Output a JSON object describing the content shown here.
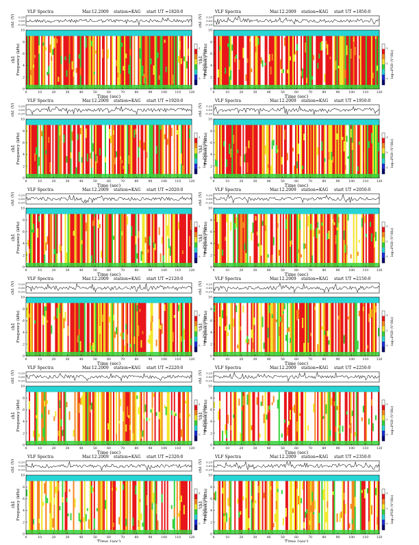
{
  "header_label": "VLF Spectra",
  "date_label": "Mar.12.2009",
  "station_label": "station=KAG",
  "waveform_ylabel": "ch1 (V)",
  "channel_label": "ch1",
  "freq_ylabel": "Frequency (kHz)",
  "time_xlabel": "Time (sec)",
  "colorbar_label": "log₁₀PSD (V²/Hz)",
  "colors": {
    "white": "#ffffff",
    "red": "#e8161b",
    "orange": "#f6891f",
    "yellow": "#f2e92b",
    "green": "#35d33b",
    "cyan": "#26d6d6",
    "blue": "#1d2fd8",
    "navy": "#0a0a70"
  },
  "chart_data": [
    {
      "type": "heatmap",
      "title": "VLF Spectra  Mar.12.2009  station=KAG  start UT =1820:0",
      "start_ut": "1820:0",
      "xlabel": "Time (sec)",
      "ylabel": "Frequency (kHz)",
      "xlim": [
        0,
        120
      ],
      "ylim": [
        0,
        10
      ],
      "x_ticks": [
        "0",
        "10",
        "20",
        "30",
        "40",
        "50",
        "60",
        "70",
        "80",
        "90",
        "100",
        "110",
        "120"
      ],
      "y_ticks": [
        "0",
        "2",
        "4",
        "6",
        "8",
        "10"
      ],
      "waveform_ylabel": "ch1 (V)",
      "waveform_ticks": [
        "0.20",
        "0.00",
        "-0.20"
      ],
      "colorbar_label": "log₁₀PSD (V²/Hz)",
      "colorbar_ticks": [
        "-1",
        "-2",
        "-3"
      ]
    },
    {
      "type": "heatmap",
      "title": "VLF Spectra  Mar.12.2009  station=KAG  start UT =1850:0",
      "start_ut": "1850:0",
      "xlabel": "Time (sec)",
      "ylabel": "Frequency (kHz)",
      "xlim": [
        0,
        120
      ],
      "ylim": [
        0,
        10
      ],
      "x_ticks": [
        "0",
        "10",
        "20",
        "30",
        "40",
        "50",
        "60",
        "70",
        "80",
        "90",
        "100",
        "110",
        "120"
      ],
      "y_ticks": [
        "0",
        "2",
        "4",
        "6",
        "8",
        "10"
      ],
      "waveform_ylabel": "ch1 (V)",
      "waveform_ticks": [
        "0.20",
        "0.00",
        "-0.20"
      ],
      "colorbar_label": "log₁₀PSD (V²/Hz)",
      "colorbar_ticks": [
        "-1",
        "-2",
        "-3"
      ]
    },
    {
      "type": "heatmap",
      "title": "VLF Spectra  Mar.12.2009  station=KAG  start UT =1920:0",
      "start_ut": "1920:0",
      "xlabel": "Time (sec)",
      "ylabel": "Frequency (kHz)",
      "xlim": [
        0,
        120
      ],
      "ylim": [
        0,
        10
      ],
      "x_ticks": [
        "0",
        "10",
        "20",
        "30",
        "40",
        "50",
        "60",
        "70",
        "80",
        "90",
        "100",
        "110",
        "120"
      ],
      "y_ticks": [
        "0",
        "2",
        "4",
        "6",
        "8",
        "10"
      ],
      "waveform_ylabel": "ch1 (V)",
      "waveform_ticks": [
        "0.20",
        "0.00",
        "-0.20"
      ],
      "colorbar_label": "log₁₀PSD (V²/Hz)",
      "colorbar_ticks": [
        "-1",
        "-2",
        "-3"
      ]
    },
    {
      "type": "heatmap",
      "title": "VLF Spectra  Mar.12.2009  station=KAG  start UT =1950:0",
      "start_ut": "1950:0",
      "xlabel": "Time (sec)",
      "ylabel": "Frequency (kHz)",
      "xlim": [
        0,
        120
      ],
      "ylim": [
        0,
        10
      ],
      "x_ticks": [
        "0",
        "10",
        "20",
        "30",
        "40",
        "50",
        "60",
        "70",
        "80",
        "90",
        "100",
        "110",
        "120"
      ],
      "y_ticks": [
        "0",
        "2",
        "4",
        "6",
        "8",
        "10"
      ],
      "waveform_ylabel": "ch1 (V)",
      "waveform_ticks": [
        "0.20",
        "0.00",
        "-0.20"
      ],
      "colorbar_label": "log₁₀PSD (V²/Hz)",
      "colorbar_ticks": [
        "-1",
        "-2",
        "-3"
      ]
    },
    {
      "type": "heatmap",
      "title": "VLF Spectra  Mar.12.2009  station=KAG  start UT =2020:0",
      "start_ut": "2020:0",
      "xlabel": "Time (sec)",
      "ylabel": "Frequency (kHz)",
      "xlim": [
        0,
        120
      ],
      "ylim": [
        0,
        10
      ],
      "x_ticks": [
        "0",
        "10",
        "20",
        "30",
        "40",
        "50",
        "60",
        "70",
        "80",
        "90",
        "100",
        "110",
        "120"
      ],
      "y_ticks": [
        "0",
        "2",
        "4",
        "6",
        "8",
        "10"
      ],
      "waveform_ylabel": "ch1 (V)",
      "waveform_ticks": [
        "0.20",
        "0.00",
        "-0.20"
      ],
      "colorbar_label": "log₁₀PSD (V²/Hz)",
      "colorbar_ticks": [
        "-1",
        "-2",
        "-3"
      ]
    },
    {
      "type": "heatmap",
      "title": "VLF Spectra  Mar.12.2009  station=KAG  start UT =2050:0",
      "start_ut": "2050:0",
      "xlabel": "Time (sec)",
      "ylabel": "Frequency (kHz)",
      "xlim": [
        0,
        120
      ],
      "ylim": [
        0,
        10
      ],
      "x_ticks": [
        "0",
        "10",
        "20",
        "30",
        "40",
        "50",
        "60",
        "70",
        "80",
        "90",
        "100",
        "110",
        "120"
      ],
      "y_ticks": [
        "0",
        "2",
        "4",
        "6",
        "8",
        "10"
      ],
      "waveform_ylabel": "ch1 (V)",
      "waveform_ticks": [
        "0.20",
        "0.00",
        "-0.20"
      ],
      "colorbar_label": "log₁₀PSD (V²/Hz)",
      "colorbar_ticks": [
        "-1",
        "-2",
        "-3"
      ]
    },
    {
      "type": "heatmap",
      "title": "VLF Spectra  Mar.12.2009  station=KAG  start UT =2120:0",
      "start_ut": "2120:0",
      "xlabel": "Time (sec)",
      "ylabel": "Frequency (kHz)",
      "xlim": [
        0,
        120
      ],
      "ylim": [
        0,
        10
      ],
      "x_ticks": [
        "0",
        "10",
        "20",
        "30",
        "40",
        "50",
        "60",
        "70",
        "80",
        "90",
        "100",
        "110",
        "120"
      ],
      "y_ticks": [
        "0",
        "2",
        "4",
        "6",
        "8",
        "10"
      ],
      "waveform_ylabel": "ch1 (V)",
      "waveform_ticks": [
        "0.20",
        "0.00",
        "-0.20"
      ],
      "colorbar_label": "log₁₀PSD (V²/Hz)",
      "colorbar_ticks": [
        "-1",
        "-2",
        "-3"
      ]
    },
    {
      "type": "heatmap",
      "title": "VLF Spectra  Mar.12.2009  station=KAG  start UT =2150:0",
      "start_ut": "2150:0",
      "xlabel": "Time (sec)",
      "ylabel": "Frequency (kHz)",
      "xlim": [
        0,
        120
      ],
      "ylim": [
        0,
        10
      ],
      "x_ticks": [
        "0",
        "10",
        "20",
        "30",
        "40",
        "50",
        "60",
        "70",
        "80",
        "90",
        "100",
        "110",
        "120"
      ],
      "y_ticks": [
        "0",
        "2",
        "4",
        "6",
        "8",
        "10"
      ],
      "waveform_ylabel": "ch1 (V)",
      "waveform_ticks": [
        "0.20",
        "0.00",
        "-0.20"
      ],
      "colorbar_label": "log₁₀PSD (V²/Hz)",
      "colorbar_ticks": [
        "-1",
        "-2",
        "-3"
      ]
    },
    {
      "type": "heatmap",
      "title": "VLF Spectra  Mar.12.2009  station=KAG  start UT =2220:0",
      "start_ut": "2220:0",
      "xlabel": "Time (sec)",
      "ylabel": "Frequency (kHz)",
      "xlim": [
        0,
        120
      ],
      "ylim": [
        0,
        10
      ],
      "x_ticks": [
        "0",
        "10",
        "20",
        "30",
        "40",
        "50",
        "60",
        "70",
        "80",
        "90",
        "100",
        "110",
        "120"
      ],
      "y_ticks": [
        "0",
        "2",
        "4",
        "6",
        "8",
        "10"
      ],
      "waveform_ylabel": "ch1 (V)",
      "waveform_ticks": [
        "0.20",
        "0.00",
        "-0.20"
      ],
      "colorbar_label": "log₁₀PSD (V²/Hz)",
      "colorbar_ticks": [
        "-1",
        "-2",
        "-3"
      ]
    },
    {
      "type": "heatmap",
      "title": "VLF Spectra  Mar.12.2009  station=KAG  start UT =2250:0",
      "start_ut": "2250:0",
      "xlabel": "Time (sec)",
      "ylabel": "Frequency (kHz)",
      "xlim": [
        0,
        120
      ],
      "ylim": [
        0,
        10
      ],
      "x_ticks": [
        "0",
        "10",
        "20",
        "30",
        "40",
        "50",
        "60",
        "70",
        "80",
        "90",
        "100",
        "110",
        "120"
      ],
      "y_ticks": [
        "0",
        "2",
        "4",
        "6",
        "8",
        "10"
      ],
      "waveform_ylabel": "ch1 (V)",
      "waveform_ticks": [
        "0.20",
        "0.00",
        "-0.20"
      ],
      "colorbar_label": "log₁₀PSD (V²/Hz)",
      "colorbar_ticks": [
        "-1",
        "-2",
        "-3"
      ]
    },
    {
      "type": "heatmap",
      "title": "VLF Spectra  Mar.12.2009  station=KAG  start UT =2320:0",
      "start_ut": "2320:0",
      "xlabel": "Time (sec)",
      "ylabel": "Frequency (kHz)",
      "xlim": [
        0,
        120
      ],
      "ylim": [
        0,
        10
      ],
      "x_ticks": [
        "0",
        "10",
        "20",
        "30",
        "40",
        "50",
        "60",
        "70",
        "80",
        "90",
        "100",
        "110",
        "120"
      ],
      "y_ticks": [
        "0",
        "2",
        "4",
        "6",
        "8",
        "10"
      ],
      "waveform_ylabel": "ch1 (V)",
      "waveform_ticks": [
        "0.20",
        "0.00",
        "-0.20"
      ],
      "colorbar_label": "log₁₀PSD (V²/Hz)",
      "colorbar_ticks": [
        "-1",
        "-2",
        "-3"
      ]
    },
    {
      "type": "heatmap",
      "title": "VLF Spectra  Mar.12.2009  station=KAG  start UT =2350:0",
      "start_ut": "2350:0",
      "xlabel": "Time (sec)",
      "ylabel": "Frequency (kHz)",
      "xlim": [
        0,
        120
      ],
      "ylim": [
        0,
        10
      ],
      "x_ticks": [
        "0",
        "10",
        "20",
        "30",
        "40",
        "50",
        "60",
        "70",
        "80",
        "90",
        "100",
        "110",
        "120"
      ],
      "y_ticks": [
        "0",
        "2",
        "4",
        "6",
        "8",
        "10"
      ],
      "waveform_ylabel": "ch1 (V)",
      "waveform_ticks": [
        "0.20",
        "0.00",
        "-0.20"
      ],
      "colorbar_label": "log₁₀PSD (V²/Hz)",
      "colorbar_ticks": [
        "-1",
        "-2",
        "-3"
      ]
    }
  ]
}
